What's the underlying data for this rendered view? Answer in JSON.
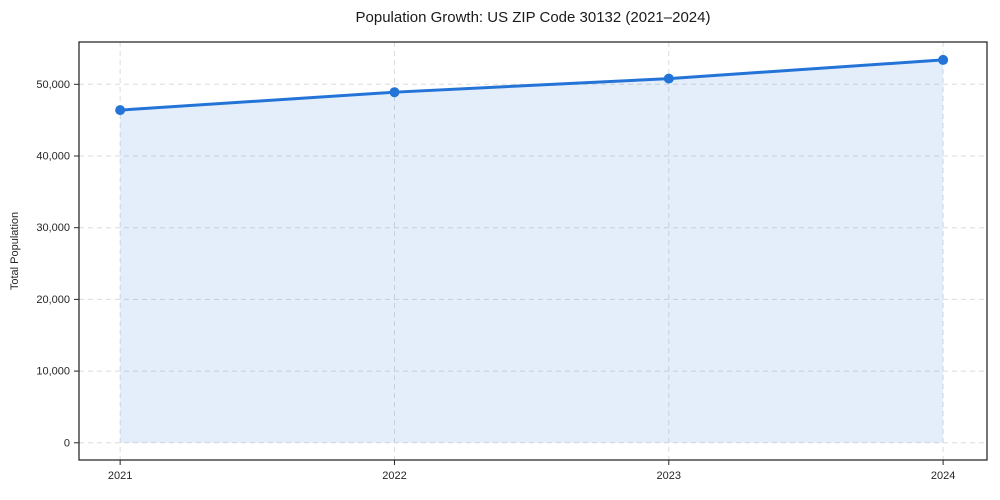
{
  "figure": {
    "background": "#ffffff"
  },
  "chart_data": {
    "type": "line",
    "title": "Population Growth: US ZIP Code 30132 (2021–2024)",
    "xlabel": "",
    "ylabel": "Total Population",
    "x": [
      2021,
      2022,
      2023,
      2024
    ],
    "values": [
      46400,
      48900,
      50800,
      53400
    ],
    "series_name": "Total Population",
    "xticks": [
      2021,
      2022,
      2023,
      2024
    ],
    "yticks": [
      0,
      10000,
      20000,
      30000,
      40000,
      50000
    ],
    "xlim": [
      2020.85,
      2024.16
    ],
    "ylim": [
      -2400,
      55900
    ],
    "grid": true,
    "grid_style": "dashed",
    "legend": "none",
    "area_fill": true,
    "marker": "circle",
    "colors": {
      "line": "#2474d8",
      "marker": "#2474d8",
      "area": "#2474d8",
      "area_opacity": 0.12,
      "grid": "#dcdcdc",
      "spine": "#1a1a1a",
      "tick": "#262626",
      "text": "#262626",
      "title": "#1a1a1a"
    }
  }
}
